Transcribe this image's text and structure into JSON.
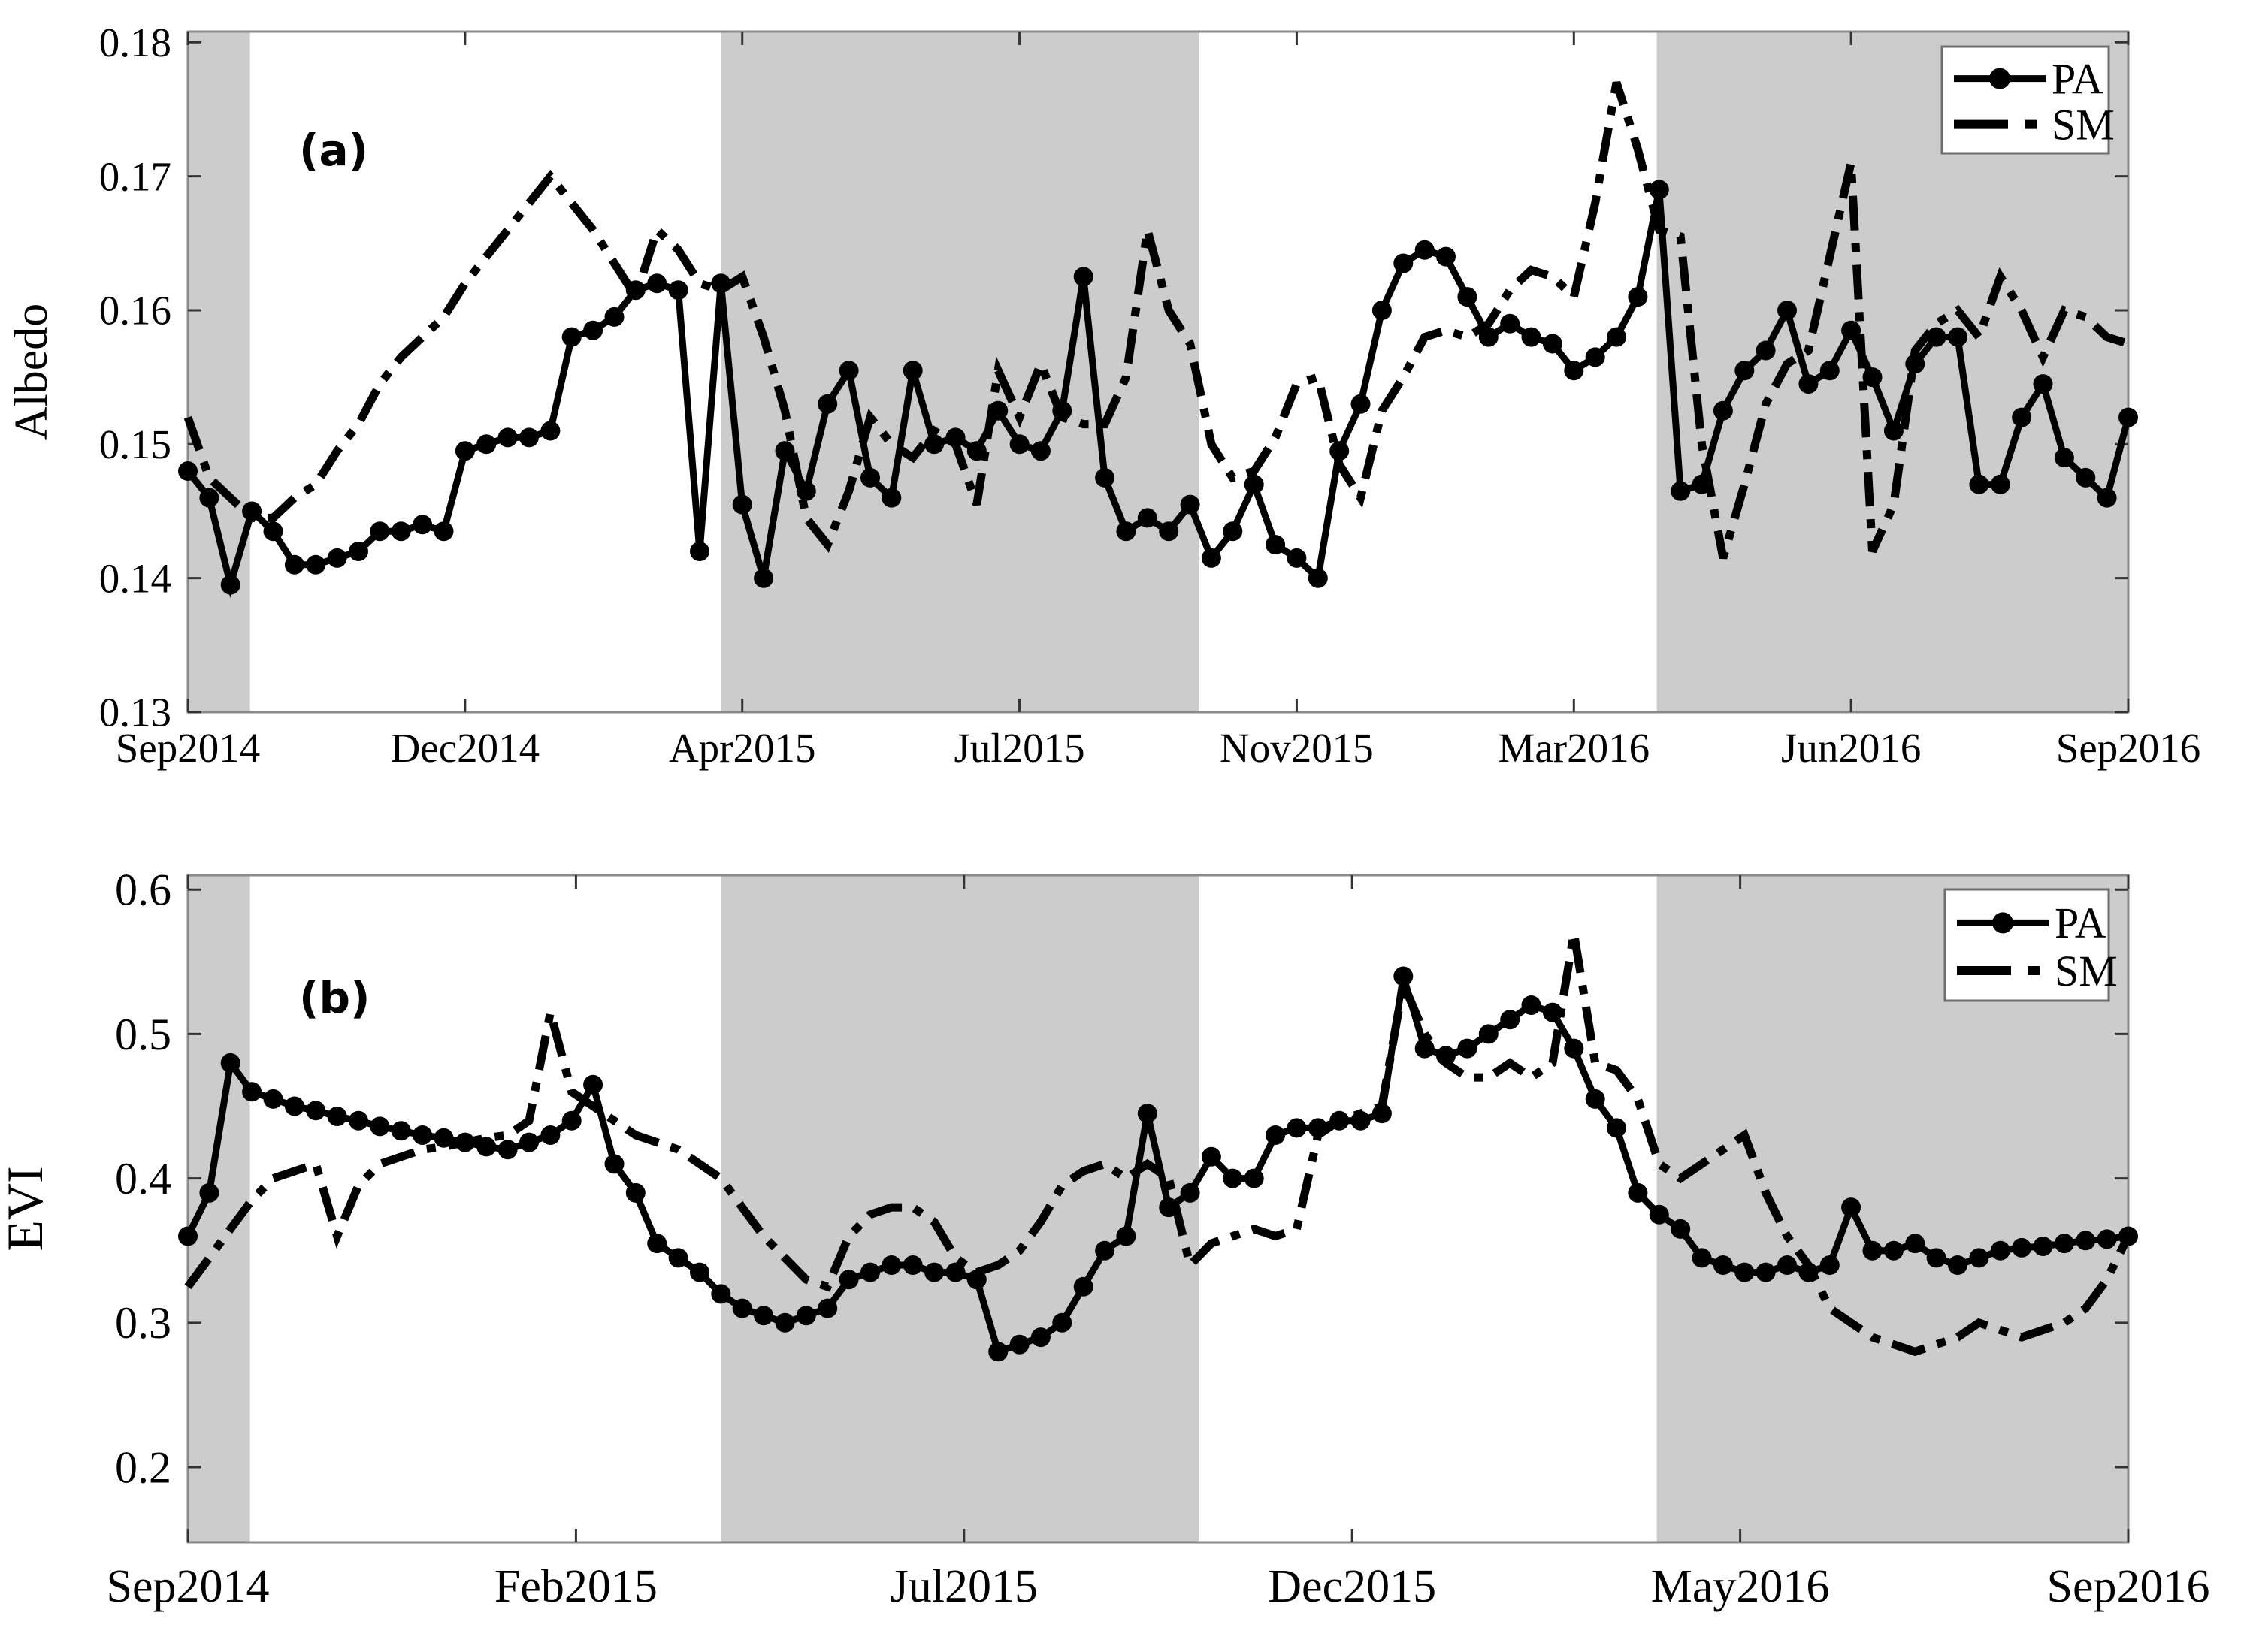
{
  "figure": {
    "background": "#ffffff",
    "band_color": "#cccccc",
    "axis_color": "#8a8a8a",
    "tick_color": "#333333",
    "line_color": "#000000",
    "legend": {
      "pa_label": "PA",
      "sm_label": "SM"
    },
    "note": "Two-panel time series, 8-day composites Sep2014 to Sep2016; gray bands mark shaded seasons"
  },
  "chart_data": [
    {
      "type": "line",
      "panel_label": "(a)",
      "ylabel": "Albedo",
      "ylim": [
        0.13,
        0.1808
      ],
      "yticks": [
        0.18,
        0.17,
        0.16,
        0.15,
        0.14,
        0.13
      ],
      "ytick_labels": [
        "0.18",
        "0.17",
        "0.16",
        "0.15",
        "0.14",
        "0.13"
      ],
      "xtick_labels": [
        "Sep2014",
        "Dec2014",
        "Apr2015",
        "Jul2015",
        "Nov2015",
        "Mar2016",
        "Jun2016",
        "Sep2016"
      ],
      "x_start": "Sep2014",
      "x_end": "Sep2016",
      "n_points": 92,
      "cadence_days": 8,
      "grid": false,
      "legend_entries": [
        "PA",
        "SM"
      ],
      "legend_position": "top-right",
      "shaded_bands_fraction": [
        [
          0.0,
          0.032
        ],
        [
          0.275,
          0.521
        ],
        [
          0.757,
          1.0
        ]
      ],
      "series": [
        {
          "name": "PA",
          "style": "solid-circle-marker",
          "values": [
            0.148,
            0.146,
            0.1395,
            0.145,
            0.1435,
            0.141,
            0.141,
            0.1415,
            0.142,
            0.1435,
            0.1435,
            0.144,
            0.1435,
            0.1495,
            0.15,
            0.1505,
            0.1505,
            0.151,
            0.158,
            0.1585,
            0.1595,
            0.1615,
            0.162,
            0.1615,
            0.142,
            0.162,
            0.1455,
            0.14,
            0.1495,
            0.1465,
            0.153,
            0.1555,
            0.1475,
            0.146,
            0.1555,
            0.15,
            0.1505,
            0.1495,
            0.1525,
            0.15,
            0.1495,
            0.1525,
            0.1625,
            0.1475,
            0.1435,
            0.1445,
            0.1435,
            0.1455,
            0.1415,
            0.1435,
            0.147,
            0.1425,
            0.1415,
            0.14,
            0.1495,
            0.153,
            0.16,
            0.1635,
            0.1645,
            0.164,
            0.161,
            0.158,
            0.159,
            0.158,
            0.1575,
            0.1555,
            0.1565,
            0.158,
            0.161,
            0.169,
            0.1465,
            0.147,
            0.1525,
            0.1555,
            0.157,
            0.16,
            0.1545,
            0.1555,
            0.1585,
            0.155,
            0.151,
            0.156,
            0.158,
            0.158,
            0.147,
            0.147,
            0.152,
            0.1545,
            0.149,
            0.1475,
            0.146,
            0.152
          ]
        },
        {
          "name": "SM",
          "style": "dash-dot",
          "values": [
            0.152,
            0.1475,
            0.146,
            0.1445,
            0.1445,
            0.146,
            0.147,
            0.1495,
            0.1515,
            0.1545,
            0.1565,
            0.158,
            0.1595,
            0.162,
            0.164,
            0.166,
            0.168,
            0.17,
            0.168,
            0.166,
            0.1635,
            0.161,
            0.166,
            0.1645,
            0.162,
            0.1615,
            0.1625,
            0.158,
            0.1525,
            0.1445,
            0.1425,
            0.1465,
            0.152,
            0.15,
            0.149,
            0.151,
            0.15,
            0.1455,
            0.1555,
            0.152,
            0.156,
            0.152,
            0.1515,
            0.1515,
            0.155,
            0.166,
            0.16,
            0.1575,
            0.15,
            0.1475,
            0.148,
            0.1505,
            0.1545,
            0.155,
            0.1485,
            0.146,
            0.1525,
            0.155,
            0.158,
            0.1585,
            0.158,
            0.159,
            0.1615,
            0.163,
            0.1625,
            0.161,
            0.168,
            0.177,
            0.172,
            0.166,
            0.1655,
            0.15,
            0.1415,
            0.147,
            0.153,
            0.156,
            0.157,
            0.164,
            0.171,
            0.142,
            0.1455,
            0.157,
            0.159,
            0.16,
            0.158,
            0.1625,
            0.16,
            0.1565,
            0.16,
            0.1595,
            0.158,
            0.1575
          ]
        }
      ]
    },
    {
      "type": "line",
      "panel_label": "(b)",
      "ylabel": "EVI",
      "ylim": [
        0.148,
        0.61
      ],
      "yticks": [
        0.6,
        0.5,
        0.4,
        0.3,
        0.2
      ],
      "ytick_labels": [
        "0.6",
        "0.5",
        "0.4",
        "0.3",
        "0.2"
      ],
      "xtick_labels": [
        "Sep2014",
        "Feb2015",
        "Jul2015",
        "Dec2015",
        "May2016",
        "Sep2016"
      ],
      "x_start": "Sep2014",
      "x_end": "Sep2016",
      "n_points": 92,
      "cadence_days": 8,
      "grid": false,
      "legend_entries": [
        "PA",
        "SM"
      ],
      "legend_position": "top-right",
      "shaded_bands_fraction": [
        [
          0.0,
          0.032
        ],
        [
          0.275,
          0.521
        ],
        [
          0.757,
          1.0
        ]
      ],
      "series": [
        {
          "name": "PA",
          "style": "solid-circle-marker",
          "values": [
            0.36,
            0.39,
            0.48,
            0.46,
            0.455,
            0.45,
            0.447,
            0.443,
            0.44,
            0.436,
            0.433,
            0.43,
            0.428,
            0.425,
            0.422,
            0.42,
            0.425,
            0.43,
            0.44,
            0.465,
            0.41,
            0.39,
            0.355,
            0.345,
            0.335,
            0.32,
            0.31,
            0.305,
            0.3,
            0.305,
            0.31,
            0.33,
            0.335,
            0.34,
            0.34,
            0.335,
            0.335,
            0.33,
            0.28,
            0.285,
            0.29,
            0.3,
            0.325,
            0.35,
            0.36,
            0.445,
            0.38,
            0.39,
            0.415,
            0.4,
            0.4,
            0.43,
            0.435,
            0.435,
            0.44,
            0.44,
            0.445,
            0.54,
            0.49,
            0.485,
            0.49,
            0.5,
            0.51,
            0.52,
            0.515,
            0.49,
            0.455,
            0.435,
            0.39,
            0.375,
            0.365,
            0.345,
            0.34,
            0.335,
            0.335,
            0.34,
            0.335,
            0.34,
            0.38,
            0.35,
            0.35,
            0.355,
            0.345,
            0.34,
            0.345,
            0.35,
            0.352,
            0.353,
            0.355,
            0.357,
            0.358,
            0.36
          ]
        },
        {
          "name": "SM",
          "style": "dash-dot",
          "values": [
            0.325,
            0.345,
            0.365,
            0.385,
            0.4,
            0.405,
            0.41,
            0.36,
            0.395,
            0.41,
            0.415,
            0.42,
            0.422,
            0.425,
            0.428,
            0.43,
            0.44,
            0.515,
            0.46,
            0.45,
            0.44,
            0.43,
            0.425,
            0.42,
            0.41,
            0.4,
            0.38,
            0.36,
            0.345,
            0.33,
            0.325,
            0.36,
            0.375,
            0.38,
            0.38,
            0.37,
            0.345,
            0.335,
            0.34,
            0.35,
            0.37,
            0.395,
            0.405,
            0.41,
            0.4,
            0.41,
            0.4,
            0.34,
            0.355,
            0.36,
            0.365,
            0.36,
            0.365,
            0.43,
            0.44,
            0.445,
            0.45,
            0.535,
            0.5,
            0.48,
            0.47,
            0.47,
            0.48,
            0.47,
            0.48,
            0.57,
            0.48,
            0.475,
            0.455,
            0.41,
            0.4,
            0.41,
            0.42,
            0.43,
            0.39,
            0.36,
            0.34,
            0.31,
            0.3,
            0.29,
            0.285,
            0.28,
            0.285,
            0.29,
            0.3,
            0.295,
            0.29,
            0.295,
            0.3,
            0.31,
            0.33,
            0.36
          ]
        }
      ]
    }
  ]
}
